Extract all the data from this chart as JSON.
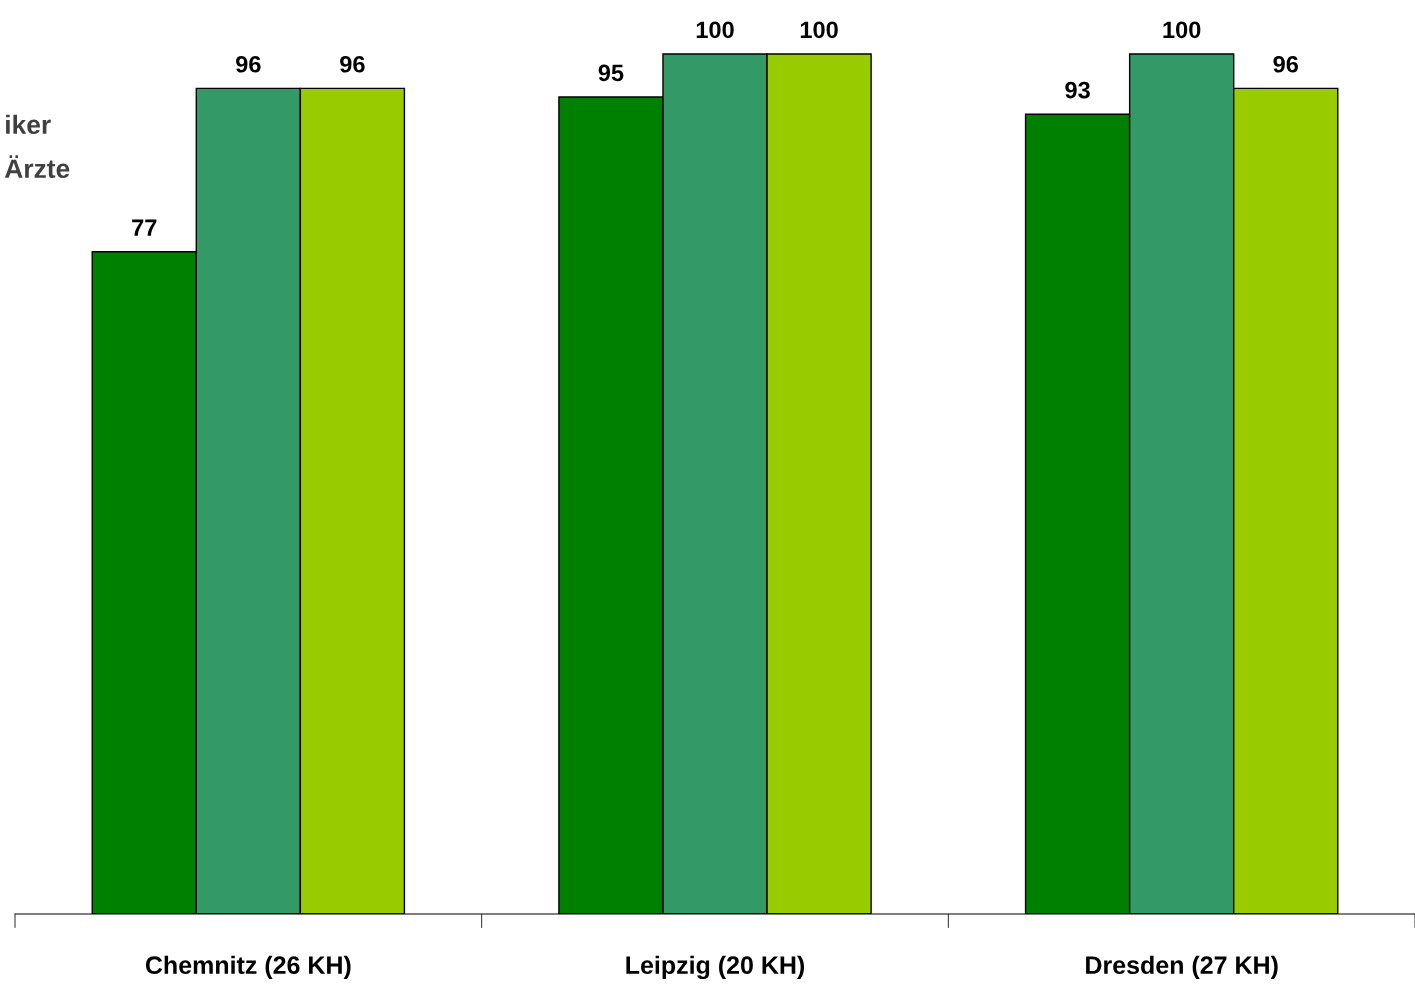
{
  "chart_data": {
    "type": "bar",
    "categories": [
      "Chemnitz (26 KH)",
      "Leipzig (20 KH)",
      "Dresden (27 KH)"
    ],
    "series": [
      {
        "color": "#008000",
        "values": [
          77,
          95,
          93
        ]
      },
      {
        "color": "#339966",
        "values": [
          96,
          100,
          100
        ]
      },
      {
        "color": "#99cc00",
        "values": [
          96,
          100,
          96
        ]
      }
    ],
    "data_labels": true,
    "grid": false,
    "legend": false,
    "tick_labels": "x",
    "annotations": [
      "iker",
      "Ärzte"
    ]
  }
}
